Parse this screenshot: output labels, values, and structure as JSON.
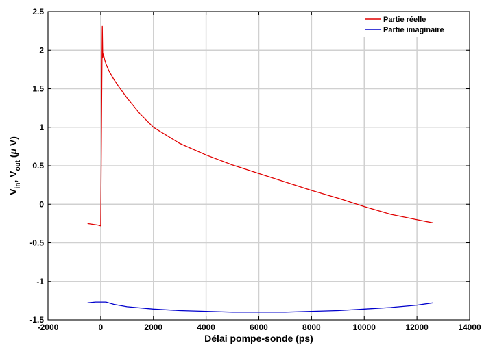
{
  "chart_data": {
    "type": "line",
    "xlabel": "Délai pompe-sonde (ps)",
    "ylabel": {
      "parts": [
        "V",
        "in",
        ", V",
        "out",
        " (",
        "μ",
        " V)"
      ]
    },
    "xlim": [
      -2000,
      14000
    ],
    "ylim": [
      -1.5,
      2.5
    ],
    "xticks": [
      -2000,
      0,
      2000,
      4000,
      6000,
      8000,
      10000,
      12000,
      14000
    ],
    "yticks": [
      -1.5,
      -1,
      -0.5,
      0,
      0.5,
      1,
      1.5,
      2,
      2.5
    ],
    "xtick_labels": [
      "-2000",
      "0",
      "2000",
      "4000",
      "6000",
      "8000",
      "10000",
      "12000",
      "14000"
    ],
    "ytick_labels": [
      "-1.5",
      "-1",
      "-0.5",
      "0",
      "0.5",
      "1",
      "1.5",
      "2",
      "2.5"
    ],
    "grid": true,
    "legend_position": "top-right",
    "series": [
      {
        "name": "Partie réelle",
        "color": "#e00000",
        "x": [
          -500,
          -300,
          -100,
          0,
          30,
          60,
          80,
          100,
          150,
          200,
          300,
          500,
          700,
          1000,
          1500,
          2000,
          3000,
          4000,
          5000,
          6000,
          7000,
          8000,
          9000,
          10000,
          11000,
          12000,
          12600
        ],
        "y": [
          -0.25,
          -0.26,
          -0.27,
          -0.28,
          1.0,
          2.31,
          1.9,
          1.95,
          1.88,
          1.82,
          1.74,
          1.62,
          1.52,
          1.38,
          1.17,
          1.0,
          0.79,
          0.64,
          0.51,
          0.4,
          0.29,
          0.18,
          0.08,
          -0.03,
          -0.13,
          -0.2,
          -0.24
        ]
      },
      {
        "name": "Partie imaginaire",
        "color": "#0000cc",
        "x": [
          -500,
          -200,
          0,
          200,
          500,
          1000,
          2000,
          3000,
          4000,
          5000,
          6000,
          7000,
          8000,
          9000,
          10000,
          11000,
          12000,
          12600
        ],
        "y": [
          -1.28,
          -1.27,
          -1.27,
          -1.27,
          -1.3,
          -1.33,
          -1.36,
          -1.38,
          -1.39,
          -1.4,
          -1.4,
          -1.4,
          -1.39,
          -1.38,
          -1.36,
          -1.34,
          -1.31,
          -1.28
        ]
      }
    ]
  }
}
